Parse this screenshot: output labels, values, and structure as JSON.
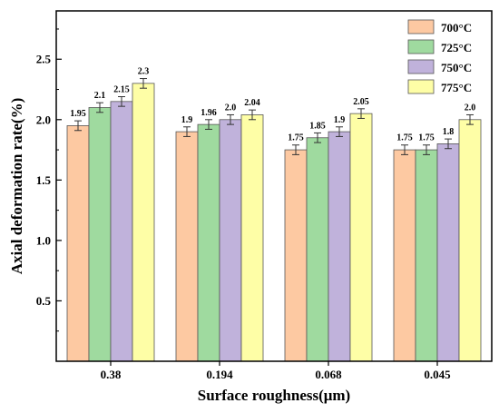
{
  "chart_data": {
    "type": "bar",
    "title": "",
    "xlabel": "Surface roughness(μm)",
    "ylabel": "Axial deformation rate(%)",
    "categories": [
      "0.38",
      "0.194",
      "0.068",
      "0.045"
    ],
    "ylim": [
      0,
      2.9
    ],
    "yticks": [
      "0.5",
      "1.0",
      "1.5",
      "2.0",
      "2.5"
    ],
    "grid": false,
    "legend_position": "top-right",
    "error_bars": true,
    "series": [
      {
        "name": "700°C",
        "color": "#FDC9A2",
        "values": [
          1.95,
          1.9,
          1.75,
          1.75
        ],
        "errors": [
          0.04,
          0.04,
          0.04,
          0.04
        ],
        "labels": [
          "1.95",
          "1.9",
          "1.75",
          "1.75"
        ]
      },
      {
        "name": "725°C",
        "color": "#9FDA9F",
        "values": [
          2.1,
          1.96,
          1.85,
          1.75
        ],
        "errors": [
          0.04,
          0.04,
          0.04,
          0.04
        ],
        "labels": [
          "2.1",
          "1.96",
          "1.85",
          "1.75"
        ]
      },
      {
        "name": "750°C",
        "color": "#C0B2DB",
        "values": [
          2.15,
          2.0,
          1.9,
          1.8
        ],
        "errors": [
          0.04,
          0.04,
          0.04,
          0.04
        ],
        "labels": [
          "2.15",
          "2.0",
          "1.9",
          "1.8"
        ]
      },
      {
        "name": "775°C",
        "color": "#FEFEA6",
        "values": [
          2.3,
          2.04,
          2.05,
          2.0
        ],
        "errors": [
          0.04,
          0.04,
          0.04,
          0.04
        ],
        "labels": [
          "2.3",
          "2.04",
          "2.05",
          "2.0"
        ]
      }
    ]
  }
}
